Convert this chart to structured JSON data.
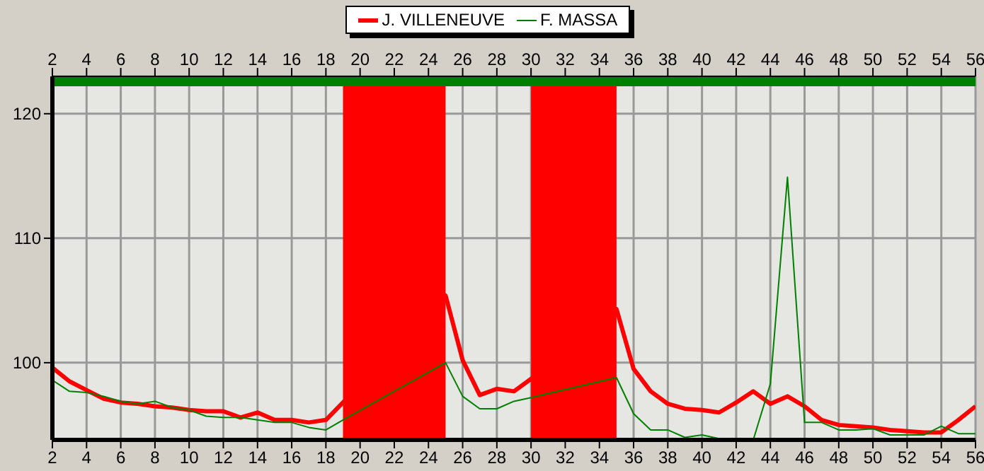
{
  "chart_data": {
    "type": "line",
    "x": [
      2,
      3,
      4,
      5,
      6,
      7,
      8,
      9,
      10,
      11,
      12,
      13,
      14,
      15,
      16,
      17,
      18,
      19,
      20,
      21,
      22,
      23,
      24,
      25,
      26,
      27,
      28,
      29,
      30,
      31,
      32,
      33,
      34,
      35,
      36,
      37,
      38,
      39,
      40,
      41,
      42,
      43,
      44,
      45,
      46,
      47,
      48,
      49,
      50,
      51,
      52,
      53,
      54,
      55,
      56
    ],
    "series": [
      {
        "name": "J. VILLENEUVE",
        "color": "#ff0000",
        "values": [
          99.6,
          98.5,
          97.8,
          97.1,
          96.8,
          96.7,
          96.5,
          96.4,
          96.2,
          96.1,
          96.1,
          95.6,
          96.0,
          95.4,
          95.4,
          95.2,
          95.4,
          96.8,
          null,
          null,
          null,
          null,
          null,
          105.4,
          100.2,
          97.4,
          97.9,
          97.7,
          98.7,
          null,
          null,
          null,
          null,
          104.3,
          99.5,
          97.7,
          96.7,
          96.3,
          96.2,
          96.0,
          96.8,
          97.7,
          96.7,
          97.3,
          96.5,
          95.4,
          95.0,
          94.9,
          94.8,
          94.6,
          94.5,
          94.4,
          94.4,
          95.4,
          96.5
        ]
      },
      {
        "name": "F. MASSA",
        "color": "#008000",
        "values": [
          98.6,
          97.7,
          97.6,
          97.3,
          96.9,
          96.7,
          96.9,
          96.4,
          96.2,
          95.7,
          95.6,
          95.6,
          95.4,
          95.2,
          95.2,
          94.8,
          94.6,
          95.4,
          null,
          null,
          null,
          null,
          null,
          100.0,
          97.3,
          96.3,
          96.3,
          96.9,
          97.2,
          null,
          null,
          null,
          null,
          98.8,
          95.9,
          94.6,
          94.6,
          94.0,
          94.2,
          93.9,
          null,
          93.8,
          98.3,
          114.9,
          95.2,
          95.2,
          94.6,
          94.6,
          94.7,
          94.2,
          94.2,
          94.2,
          94.9,
          94.3,
          94.3
        ]
      }
    ],
    "xlim": [
      2,
      56
    ],
    "xticks": [
      2,
      4,
      6,
      8,
      10,
      12,
      14,
      16,
      18,
      20,
      22,
      24,
      26,
      28,
      30,
      32,
      34,
      36,
      38,
      40,
      42,
      44,
      46,
      48,
      50,
      52,
      54,
      56
    ],
    "x2lim": [
      2,
      56
    ],
    "x2ticks": [
      2,
      4,
      6,
      8,
      10,
      12,
      14,
      16,
      18,
      20,
      22,
      24,
      26,
      28,
      30,
      32,
      34,
      36,
      38,
      40,
      42,
      44,
      46,
      48,
      50,
      52,
      54,
      56
    ],
    "ylim": [
      93.8,
      123
    ],
    "yticks": [
      100,
      110,
      120
    ],
    "bands": [
      {
        "axis": "x",
        "from": 19,
        "to": 25,
        "color": "#ff0000"
      },
      {
        "axis": "x",
        "from": 30,
        "to": 35,
        "color": "#ff0000"
      },
      {
        "axis": "y",
        "from": 122.2,
        "to": 123,
        "color": "#008000"
      }
    ],
    "grid": true,
    "legend": "top",
    "marker": "none",
    "line_style": "solid"
  }
}
